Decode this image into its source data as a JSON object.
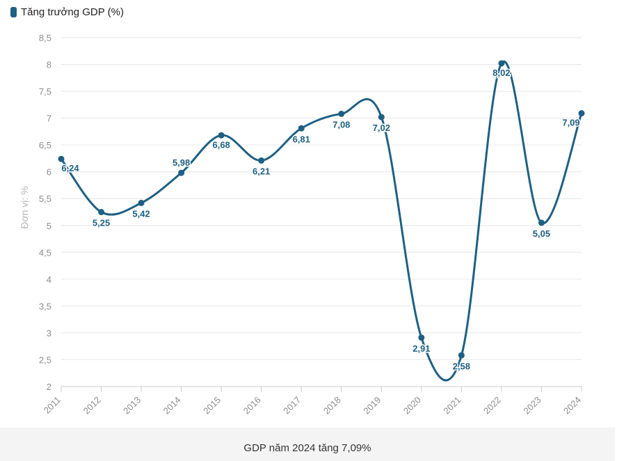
{
  "legend": {
    "label": "Tăng trưởng GDP (%)"
  },
  "caption": "GDP năm 2024 tăng 7,09%",
  "colors": {
    "series": "#1d6083",
    "grid": "#e6e6e6",
    "axis_text": "#8c8c8c"
  },
  "chart_data": {
    "type": "line",
    "smooth": true,
    "categories": [
      "2011",
      "2012",
      "2013",
      "2014",
      "2015",
      "2016",
      "2017",
      "2018",
      "2019",
      "2020",
      "2021",
      "2022",
      "2023",
      "2024"
    ],
    "series": [
      {
        "name": "Tăng trưởng GDP (%)",
        "values": [
          6.24,
          5.25,
          5.42,
          5.98,
          6.68,
          6.21,
          6.81,
          7.08,
          7.02,
          2.91,
          2.58,
          8.02,
          5.05,
          7.09
        ],
        "data_labels": [
          "6,24",
          "5,25",
          "5,42",
          "5,98",
          "6,68",
          "6,21",
          "6,81",
          "7,08",
          "7,02",
          "2,91",
          "2,58",
          "8,02",
          "5,05",
          "7,09"
        ]
      }
    ],
    "xlabel": "",
    "ylabel": "Đơn vị: %",
    "ylim": [
      2,
      8.5
    ],
    "yticks": [
      2,
      2.5,
      3,
      3.5,
      4,
      4.5,
      5,
      5.5,
      6,
      6.5,
      7,
      7.5,
      8,
      8.5
    ],
    "ytick_labels": [
      "2",
      "2,5",
      "3",
      "3,5",
      "4",
      "4,5",
      "5",
      "5,5",
      "6",
      "6,5",
      "7",
      "7,5",
      "8",
      "8,5"
    ],
    "grid": true,
    "legend_position": "top-left"
  }
}
